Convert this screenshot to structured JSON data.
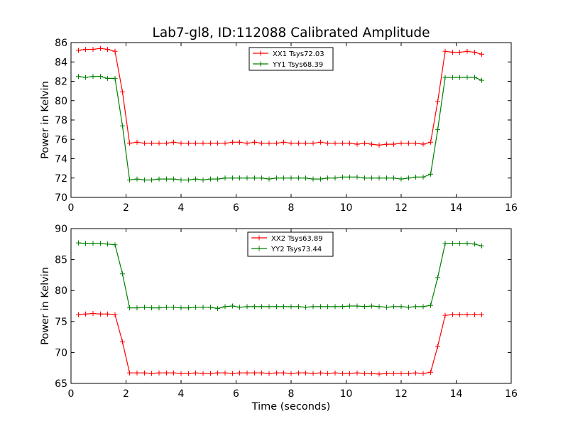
{
  "figure": {
    "title": "Lab7-gl8, ID:112088 Calibrated Amplitude"
  },
  "chart_data": [
    {
      "type": "line",
      "title": "Lab7-gl8, ID:112088 Calibrated Amplitude",
      "xlabel": "",
      "ylabel": "Power in Kelvin",
      "xlim": [
        0,
        16
      ],
      "ylim": [
        70,
        86
      ],
      "xticks": [
        "0",
        "2",
        "4",
        "6",
        "8",
        "10",
        "12",
        "14",
        "16"
      ],
      "yticks": [
        "70",
        "72",
        "74",
        "76",
        "78",
        "80",
        "82",
        "84",
        "86"
      ],
      "grid": false,
      "legend": "top-center",
      "x": [
        0.27,
        0.53,
        0.8,
        1.07,
        1.33,
        1.6,
        1.87,
        2.13,
        2.4,
        2.67,
        2.93,
        3.2,
        3.47,
        3.73,
        4.0,
        4.27,
        4.53,
        4.8,
        5.07,
        5.33,
        5.6,
        5.87,
        6.13,
        6.4,
        6.67,
        6.93,
        7.2,
        7.47,
        7.73,
        8.0,
        8.27,
        8.53,
        8.8,
        9.07,
        9.33,
        9.6,
        9.87,
        10.13,
        10.4,
        10.67,
        10.93,
        11.2,
        11.47,
        11.73,
        12.0,
        12.27,
        12.53,
        12.8,
        13.07,
        13.33,
        13.6,
        13.87,
        14.13,
        14.4,
        14.67,
        14.93
      ],
      "series": [
        {
          "name": "XX1 Tsys72.03",
          "color": "#ff0000",
          "values": [
            85.2,
            85.3,
            85.3,
            85.4,
            85.3,
            85.1,
            80.9,
            75.6,
            75.7,
            75.6,
            75.6,
            75.6,
            75.6,
            75.7,
            75.6,
            75.6,
            75.6,
            75.6,
            75.6,
            75.6,
            75.6,
            75.7,
            75.7,
            75.6,
            75.7,
            75.6,
            75.6,
            75.6,
            75.7,
            75.6,
            75.6,
            75.6,
            75.6,
            75.7,
            75.6,
            75.6,
            75.6,
            75.6,
            75.5,
            75.6,
            75.5,
            75.4,
            75.5,
            75.5,
            75.6,
            75.6,
            75.6,
            75.5,
            75.7,
            79.9,
            85.1,
            85.0,
            85.0,
            85.1,
            85.0,
            84.8
          ]
        },
        {
          "name": "YY1 Tsys68.39",
          "color": "#008000",
          "values": [
            82.5,
            82.4,
            82.5,
            82.5,
            82.3,
            82.3,
            77.4,
            71.8,
            71.9,
            71.8,
            71.8,
            71.9,
            71.9,
            71.9,
            71.8,
            71.8,
            71.9,
            71.8,
            71.9,
            71.9,
            72.0,
            72.0,
            72.0,
            72.0,
            72.0,
            72.0,
            71.9,
            72.0,
            72.0,
            72.0,
            72.0,
            72.0,
            71.9,
            71.9,
            72.0,
            72.0,
            72.1,
            72.1,
            72.1,
            72.0,
            72.0,
            72.0,
            72.0,
            72.0,
            71.9,
            72.0,
            72.1,
            72.1,
            72.4,
            77.0,
            82.4,
            82.4,
            82.4,
            82.4,
            82.4,
            82.1
          ]
        }
      ]
    },
    {
      "type": "line",
      "title": "",
      "xlabel": "Time (seconds)",
      "ylabel": "Power in Kelvin",
      "xlim": [
        0,
        16
      ],
      "ylim": [
        65,
        90
      ],
      "xticks": [
        "0",
        "2",
        "4",
        "6",
        "8",
        "10",
        "12",
        "14",
        "16"
      ],
      "yticks": [
        "65",
        "70",
        "75",
        "80",
        "85",
        "90"
      ],
      "grid": false,
      "legend": "top-center",
      "x": [
        0.27,
        0.53,
        0.8,
        1.07,
        1.33,
        1.6,
        1.87,
        2.13,
        2.4,
        2.67,
        2.93,
        3.2,
        3.47,
        3.73,
        4.0,
        4.27,
        4.53,
        4.8,
        5.07,
        5.33,
        5.6,
        5.87,
        6.13,
        6.4,
        6.67,
        6.93,
        7.2,
        7.47,
        7.73,
        8.0,
        8.27,
        8.53,
        8.8,
        9.07,
        9.33,
        9.6,
        9.87,
        10.13,
        10.4,
        10.67,
        10.93,
        11.2,
        11.47,
        11.73,
        12.0,
        12.27,
        12.53,
        12.8,
        13.07,
        13.33,
        13.6,
        13.87,
        14.13,
        14.4,
        14.67,
        14.93
      ],
      "series": [
        {
          "name": "XX2 Tsys63.89",
          "color": "#ff0000",
          "values": [
            76.1,
            76.2,
            76.3,
            76.2,
            76.2,
            76.1,
            71.7,
            66.7,
            66.7,
            66.7,
            66.6,
            66.7,
            66.7,
            66.7,
            66.6,
            66.6,
            66.7,
            66.6,
            66.6,
            66.7,
            66.7,
            66.6,
            66.7,
            66.7,
            66.7,
            66.7,
            66.6,
            66.7,
            66.7,
            66.6,
            66.7,
            66.7,
            66.6,
            66.7,
            66.6,
            66.7,
            66.6,
            66.6,
            66.7,
            66.6,
            66.6,
            66.5,
            66.6,
            66.6,
            66.6,
            66.6,
            66.7,
            66.6,
            66.8,
            71.0,
            76.0,
            76.1,
            76.1,
            76.1,
            76.1,
            76.1
          ]
        },
        {
          "name": "YY2 Tsys73.44",
          "color": "#008000",
          "values": [
            87.7,
            87.6,
            87.6,
            87.6,
            87.5,
            87.4,
            82.7,
            77.2,
            77.2,
            77.3,
            77.2,
            77.2,
            77.3,
            77.3,
            77.2,
            77.2,
            77.3,
            77.3,
            77.3,
            77.1,
            77.4,
            77.5,
            77.3,
            77.4,
            77.4,
            77.4,
            77.4,
            77.4,
            77.4,
            77.4,
            77.4,
            77.3,
            77.4,
            77.4,
            77.4,
            77.4,
            77.4,
            77.5,
            77.5,
            77.4,
            77.5,
            77.4,
            77.3,
            77.4,
            77.4,
            77.3,
            77.4,
            77.4,
            77.6,
            82.1,
            87.6,
            87.6,
            87.6,
            87.6,
            87.5,
            87.2
          ]
        }
      ]
    }
  ]
}
